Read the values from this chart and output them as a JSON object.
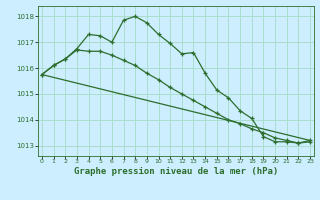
{
  "background_color": "#cceeff",
  "grid_color": "#aaddcc",
  "line_color": "#2d6e2d",
  "xlabel": "Graphe pression niveau de la mer (hPa)",
  "xlabel_fontsize": 6.5,
  "yticks": [
    1013,
    1014,
    1015,
    1016,
    1017,
    1018
  ],
  "xticks": [
    0,
    1,
    2,
    3,
    4,
    5,
    6,
    7,
    8,
    9,
    10,
    11,
    12,
    13,
    14,
    15,
    16,
    17,
    18,
    19,
    20,
    21,
    22,
    23
  ],
  "ylim": [
    1012.6,
    1018.4
  ],
  "xlim": [
    -0.3,
    23.3
  ],
  "series1": {
    "x": [
      0,
      1,
      2,
      3,
      4,
      5,
      6,
      7,
      8,
      9,
      10,
      11,
      12,
      13,
      14,
      15,
      16,
      17,
      18,
      19,
      20,
      21,
      22,
      23
    ],
    "y": [
      1015.75,
      1016.1,
      1016.35,
      1016.75,
      1017.3,
      1017.25,
      1017.0,
      1017.85,
      1018.0,
      1017.75,
      1017.3,
      1016.95,
      1016.55,
      1016.6,
      1015.8,
      1015.15,
      1014.85,
      1014.35,
      1014.05,
      1013.35,
      1013.15,
      1013.15,
      1013.1,
      1013.2
    ]
  },
  "series2": {
    "x": [
      0,
      1,
      2,
      3,
      4,
      5,
      6,
      7,
      8,
      9,
      10,
      11,
      12,
      13,
      14,
      15,
      16,
      17,
      18,
      19,
      20,
      21,
      22,
      23
    ],
    "y": [
      1015.75,
      1016.1,
      1016.35,
      1016.7,
      1016.65,
      1016.65,
      1016.5,
      1016.3,
      1016.1,
      1015.8,
      1015.55,
      1015.25,
      1015.0,
      1014.75,
      1014.5,
      1014.25,
      1014.0,
      1013.85,
      1013.65,
      1013.5,
      1013.3,
      1013.2,
      1013.1,
      1013.15
    ]
  },
  "series3": {
    "x": [
      0,
      23
    ],
    "y": [
      1015.75,
      1013.2
    ]
  }
}
